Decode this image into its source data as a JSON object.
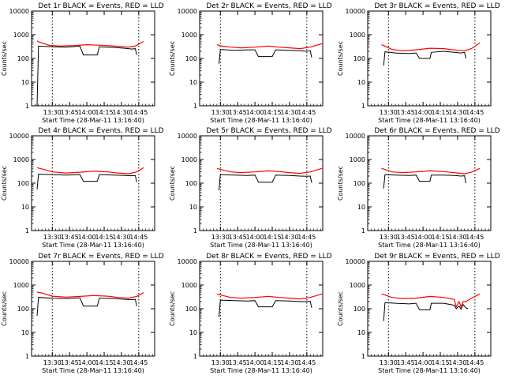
{
  "shared": {
    "ylabel": "Counts/sec",
    "yticks": [
      "1",
      "10",
      "100",
      "1000",
      "10000"
    ],
    "colors": {
      "events": "#000000",
      "lld": "#ff0000"
    },
    "time_marks": [
      "13:30",
      "14:45"
    ],
    "ylim": [
      1,
      10000
    ],
    "scale": "log",
    "xlabel": "Start Time (28-Mar-11 13:16:40)"
  },
  "chart_data": [
    {
      "type": "line",
      "title": "Det 1r BLACK = Events, RED = LLD",
      "x_ticks": [
        "13:30",
        "13:45",
        "14:00",
        "14:15",
        "14:30",
        "14:45"
      ],
      "series": [
        {
          "values": [
            [
              13.28,
              0
            ],
            [
              13.3,
              330
            ],
            [
              13.5,
              310
            ],
            [
              13.7,
              300
            ],
            [
              13.9,
              330
            ],
            [
              13.95,
              140
            ],
            [
              14.15,
              140
            ],
            [
              14.18,
              310
            ],
            [
              14.4,
              290
            ],
            [
              14.55,
              270
            ],
            [
              14.65,
              250
            ],
            [
              14.7,
              260
            ],
            [
              14.72,
              140
            ]
          ]
        },
        {
          "values": [
            [
              13.28,
              550
            ],
            [
              13.3,
              500
            ],
            [
              13.45,
              360
            ],
            [
              13.6,
              330
            ],
            [
              13.8,
              350
            ],
            [
              14.0,
              380
            ],
            [
              14.2,
              360
            ],
            [
              14.4,
              330
            ],
            [
              14.6,
              300
            ],
            [
              14.7,
              330
            ],
            [
              14.82,
              520
            ]
          ]
        }
      ]
    },
    {
      "type": "line",
      "title": "Det 2r BLACK = Events, RED = LLD",
      "x_ticks": [
        "13:30",
        "13:45",
        "14:00",
        "14:15",
        "14:30",
        "14:45"
      ],
      "series": [
        {
          "values": [
            [
              13.48,
              60
            ],
            [
              13.5,
              240
            ],
            [
              13.7,
              220
            ],
            [
              13.9,
              230
            ],
            [
              14.0,
              230
            ],
            [
              14.05,
              120
            ],
            [
              14.25,
              120
            ],
            [
              14.3,
              230
            ],
            [
              14.5,
              220
            ],
            [
              14.65,
              210
            ],
            [
              14.75,
              200
            ],
            [
              14.8,
              210
            ],
            [
              14.82,
              110
            ]
          ]
        },
        {
          "values": [
            [
              13.45,
              380
            ],
            [
              13.5,
              340
            ],
            [
              13.65,
              300
            ],
            [
              13.8,
              280
            ],
            [
              14.0,
              300
            ],
            [
              14.2,
              330
            ],
            [
              14.35,
              300
            ],
            [
              14.5,
              280
            ],
            [
              14.65,
              260
            ],
            [
              14.8,
              300
            ],
            [
              14.97,
              420
            ]
          ]
        }
      ]
    },
    {
      "type": "line",
      "title": "Det 3r BLACK = Events, RED = LLD",
      "x_ticks": [
        "13:30",
        "13:45",
        "14:00",
        "14:15",
        "14:30",
        "14:45"
      ],
      "series": [
        {
          "values": [
            [
              13.43,
              50
            ],
            [
              13.45,
              190
            ],
            [
              13.6,
              170
            ],
            [
              13.8,
              160
            ],
            [
              13.9,
              170
            ],
            [
              13.95,
              100
            ],
            [
              14.1,
              100
            ],
            [
              14.12,
              180
            ],
            [
              14.3,
              200
            ],
            [
              14.45,
              180
            ],
            [
              14.55,
              170
            ],
            [
              14.6,
              180
            ],
            [
              14.62,
              100
            ]
          ]
        },
        {
          "values": [
            [
              13.4,
              380
            ],
            [
              13.45,
              330
            ],
            [
              13.55,
              240
            ],
            [
              13.7,
              210
            ],
            [
              13.9,
              230
            ],
            [
              14.1,
              270
            ],
            [
              14.3,
              260
            ],
            [
              14.5,
              220
            ],
            [
              14.6,
              210
            ],
            [
              14.7,
              260
            ],
            [
              14.82,
              450
            ]
          ]
        }
      ]
    },
    {
      "type": "line",
      "title": "Det 4r BLACK = Events, RED = LLD",
      "x_ticks": [
        "13:30",
        "13:45",
        "14:00",
        "14:15",
        "14:30",
        "14:45"
      ],
      "series": [
        {
          "values": [
            [
              13.28,
              55
            ],
            [
              13.3,
              240
            ],
            [
              13.5,
              230
            ],
            [
              13.7,
              220
            ],
            [
              13.9,
              230
            ],
            [
              13.95,
              120
            ],
            [
              14.15,
              120
            ],
            [
              14.18,
              230
            ],
            [
              14.4,
              220
            ],
            [
              14.55,
              210
            ],
            [
              14.65,
              205
            ],
            [
              14.7,
              210
            ],
            [
              14.72,
              110
            ]
          ]
        },
        {
          "values": [
            [
              13.28,
              450
            ],
            [
              13.35,
              400
            ],
            [
              13.5,
              300
            ],
            [
              13.7,
              270
            ],
            [
              13.9,
              290
            ],
            [
              14.1,
              320
            ],
            [
              14.3,
              300
            ],
            [
              14.45,
              270
            ],
            [
              14.6,
              250
            ],
            [
              14.72,
              300
            ],
            [
              14.82,
              450
            ]
          ]
        }
      ]
    },
    {
      "type": "line",
      "title": "Det 5r BLACK = Events, RED = LLD",
      "x_ticks": [
        "13:30",
        "13:45",
        "14:00",
        "14:15",
        "14:30",
        "14:45"
      ],
      "series": [
        {
          "values": [
            [
              13.48,
              50
            ],
            [
              13.5,
              230
            ],
            [
              13.7,
              220
            ],
            [
              13.9,
              210
            ],
            [
              14.0,
              220
            ],
            [
              14.05,
              110
            ],
            [
              14.25,
              110
            ],
            [
              14.3,
              220
            ],
            [
              14.5,
              210
            ],
            [
              14.65,
              200
            ],
            [
              14.75,
              195
            ],
            [
              14.8,
              200
            ],
            [
              14.82,
              105
            ]
          ]
        },
        {
          "values": [
            [
              13.45,
              420
            ],
            [
              13.5,
              380
            ],
            [
              13.65,
              300
            ],
            [
              13.8,
              280
            ],
            [
              14.0,
              300
            ],
            [
              14.2,
              330
            ],
            [
              14.35,
              310
            ],
            [
              14.5,
              280
            ],
            [
              14.65,
              260
            ],
            [
              14.8,
              300
            ],
            [
              14.97,
              420
            ]
          ]
        }
      ]
    },
    {
      "type": "line",
      "title": "Det 6r BLACK = Events, RED = LLD",
      "x_ticks": [
        "13:30",
        "13:45",
        "14:00",
        "14:15",
        "14:30",
        "14:45"
      ],
      "series": [
        {
          "values": [
            [
              13.43,
              60
            ],
            [
              13.45,
              230
            ],
            [
              13.6,
              220
            ],
            [
              13.8,
              210
            ],
            [
              13.9,
              220
            ],
            [
              13.95,
              120
            ],
            [
              14.1,
              120
            ],
            [
              14.12,
              220
            ],
            [
              14.3,
              220
            ],
            [
              14.45,
              210
            ],
            [
              14.55,
              200
            ],
            [
              14.6,
              205
            ],
            [
              14.62,
              100
            ]
          ]
        },
        {
          "values": [
            [
              13.4,
              420
            ],
            [
              13.45,
              380
            ],
            [
              13.55,
              300
            ],
            [
              13.7,
              280
            ],
            [
              13.9,
              300
            ],
            [
              14.1,
              330
            ],
            [
              14.3,
              310
            ],
            [
              14.5,
              270
            ],
            [
              14.6,
              250
            ],
            [
              14.7,
              290
            ],
            [
              14.82,
              420
            ]
          ]
        }
      ]
    },
    {
      "type": "line",
      "title": "Det 7r BLACK = Events, RED = LLD",
      "x_ticks": [
        "13:30",
        "13:45",
        "14:00",
        "14:15",
        "14:30",
        "14:45"
      ],
      "series": [
        {
          "values": [
            [
              13.28,
              50
            ],
            [
              13.3,
              300
            ],
            [
              13.5,
              280
            ],
            [
              13.7,
              270
            ],
            [
              13.9,
              290
            ],
            [
              13.95,
              130
            ],
            [
              14.15,
              130
            ],
            [
              14.18,
              280
            ],
            [
              14.4,
              270
            ],
            [
              14.55,
              250
            ],
            [
              14.65,
              240
            ],
            [
              14.7,
              250
            ],
            [
              14.72,
              130
            ]
          ]
        },
        {
          "values": [
            [
              13.28,
              500
            ],
            [
              13.35,
              460
            ],
            [
              13.5,
              340
            ],
            [
              13.7,
              310
            ],
            [
              13.9,
              330
            ],
            [
              14.1,
              360
            ],
            [
              14.3,
              340
            ],
            [
              14.45,
              300
            ],
            [
              14.6,
              280
            ],
            [
              14.72,
              330
            ],
            [
              14.82,
              480
            ]
          ]
        }
      ]
    },
    {
      "type": "line",
      "title": "Det 8r BLACK = Events, RED = LLD",
      "x_ticks": [
        "13:30",
        "13:45",
        "14:00",
        "14:15",
        "14:30",
        "14:45"
      ],
      "series": [
        {
          "values": [
            [
              13.48,
              45
            ],
            [
              13.5,
              230
            ],
            [
              13.7,
              220
            ],
            [
              13.9,
              210
            ],
            [
              14.0,
              220
            ],
            [
              14.05,
              120
            ],
            [
              14.25,
              120
            ],
            [
              14.3,
              220
            ],
            [
              14.5,
              210
            ],
            [
              14.65,
              200
            ],
            [
              14.75,
              200
            ],
            [
              14.8,
              205
            ],
            [
              14.82,
              110
            ]
          ]
        },
        {
          "values": [
            [
              13.45,
              420
            ],
            [
              13.5,
              380
            ],
            [
              13.65,
              300
            ],
            [
              13.8,
              280
            ],
            [
              14.0,
              300
            ],
            [
              14.2,
              330
            ],
            [
              14.35,
              300
            ],
            [
              14.5,
              280
            ],
            [
              14.65,
              260
            ],
            [
              14.8,
              300
            ],
            [
              14.97,
              420
            ]
          ]
        }
      ]
    },
    {
      "type": "line",
      "title": "Det 9r BLACK = Events, RED = LLD",
      "x_ticks": [
        "13:30",
        "13:45",
        "14:00",
        "14:15",
        "14:30",
        "14:45"
      ],
      "series": [
        {
          "values": [
            [
              13.43,
              30
            ],
            [
              13.45,
              180
            ],
            [
              13.6,
              170
            ],
            [
              13.8,
              160
            ],
            [
              13.9,
              170
            ],
            [
              13.95,
              90
            ],
            [
              14.1,
              90
            ],
            [
              14.12,
              170
            ],
            [
              14.3,
              170
            ],
            [
              14.45,
              140
            ],
            [
              14.48,
              100
            ],
            [
              14.52,
              130
            ],
            [
              14.55,
              95
            ],
            [
              14.58,
              150
            ],
            [
              14.62,
              110
            ],
            [
              14.65,
              100
            ]
          ]
        },
        {
          "values": [
            [
              13.4,
              420
            ],
            [
              13.45,
              380
            ],
            [
              13.55,
              300
            ],
            [
              13.7,
              270
            ],
            [
              13.9,
              280
            ],
            [
              14.1,
              330
            ],
            [
              14.3,
              300
            ],
            [
              14.45,
              250
            ],
            [
              14.48,
              120
            ],
            [
              14.52,
              200
            ],
            [
              14.55,
              120
            ],
            [
              14.58,
              200
            ],
            [
              14.62,
              200
            ],
            [
              14.7,
              280
            ],
            [
              14.82,
              420
            ]
          ]
        }
      ]
    }
  ]
}
